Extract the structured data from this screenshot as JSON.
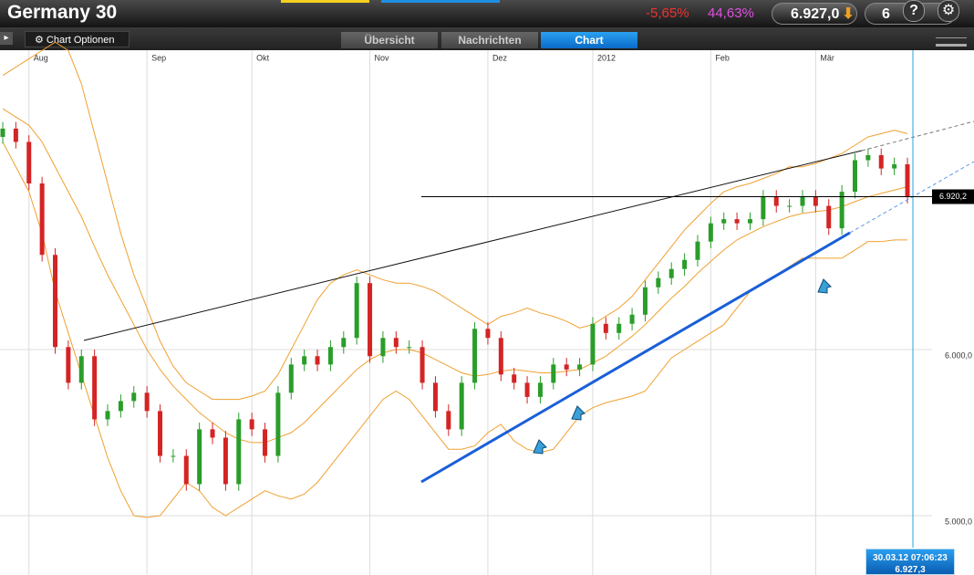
{
  "header": {
    "title": "Germany 30",
    "change_pct": "-5,65%",
    "other_pct": "44,63%",
    "price": "6.927,0",
    "price2": "6"
  },
  "toolbar": {
    "options": "Chart Optionen",
    "tabs": [
      "Übersicht",
      "Nachrichten",
      "Chart"
    ]
  },
  "footer": {
    "time": "30.03.12 07:06:23",
    "price": "6.927,3"
  },
  "chart_data": {
    "type": "candlestick",
    "categories": [
      null,
      null,
      "Aug",
      null,
      null,
      null,
      null,
      null,
      null,
      null,
      null,
      "Sep",
      null,
      null,
      null,
      null,
      null,
      null,
      null,
      "Okt",
      null,
      null,
      null,
      null,
      null,
      null,
      null,
      null,
      "Nov",
      null,
      null,
      null,
      null,
      null,
      null,
      null,
      null,
      "Dez",
      null,
      null,
      null,
      null,
      null,
      null,
      null,
      "2012",
      null,
      null,
      null,
      null,
      null,
      null,
      null,
      null,
      "Feb",
      null,
      null,
      null,
      null,
      null,
      null,
      null,
      "Mär",
      null,
      null,
      null,
      null,
      null,
      null,
      null
    ],
    "open": [
      7280,
      7330,
      7250,
      7000,
      6570,
      6015,
      5800,
      5960,
      5580,
      5630,
      5690,
      5740,
      5630,
      5360,
      5360,
      5190,
      5520,
      5470,
      5190,
      5580,
      5520,
      5360,
      5740,
      5910,
      5960,
      5910,
      6015,
      6070,
      6400,
      5960,
      6070,
      6015,
      6015,
      5800,
      5630,
      5520,
      5800,
      6125,
      6070,
      5850,
      5800,
      5715,
      5800,
      5910,
      5880,
      5910,
      6155,
      6100,
      6155,
      6210,
      6375,
      6430,
      6485,
      6540,
      6650,
      6760,
      6785,
      6760,
      6785,
      6920,
      6865,
      6865,
      6920,
      6865,
      6730,
      6950,
      7140,
      7170,
      7090,
      7115
    ],
    "high": [
      7370,
      7370,
      7290,
      7040,
      6610,
      6055,
      6000,
      6000,
      5670,
      5730,
      5780,
      5780,
      5670,
      5400,
      5400,
      5560,
      5560,
      5510,
      5620,
      5620,
      5560,
      5780,
      5950,
      6000,
      6000,
      6055,
      6110,
      6440,
      6440,
      6110,
      6110,
      6055,
      6055,
      5840,
      5670,
      5840,
      6165,
      6165,
      6110,
      5890,
      5840,
      5840,
      5950,
      5950,
      5950,
      6195,
      6195,
      6195,
      6250,
      6415,
      6470,
      6525,
      6580,
      6690,
      6800,
      6825,
      6825,
      6825,
      6960,
      6960,
      6905,
      6960,
      6960,
      6905,
      6990,
      7180,
      7210,
      7210,
      7155,
      7155
    ],
    "low": [
      7240,
      7210,
      6960,
      6530,
      5975,
      5760,
      5760,
      5540,
      5540,
      5590,
      5650,
      5590,
      5320,
      5320,
      5150,
      5150,
      5430,
      5150,
      5150,
      5480,
      5320,
      5320,
      5700,
      5870,
      5870,
      5870,
      5975,
      6030,
      5920,
      5920,
      5975,
      5975,
      5760,
      5590,
      5480,
      5480,
      5760,
      6030,
      5810,
      5760,
      5675,
      5675,
      5760,
      5840,
      5840,
      5870,
      6060,
      6060,
      6115,
      6170,
      6335,
      6390,
      6445,
      6500,
      6610,
      6720,
      6720,
      6720,
      6745,
      6825,
      6825,
      6825,
      6825,
      6690,
      6690,
      6910,
      7100,
      7050,
      7050,
      6880
    ],
    "close": [
      7330,
      7250,
      7000,
      6570,
      6015,
      5800,
      5960,
      5580,
      5630,
      5690,
      5740,
      5630,
      5360,
      5360,
      5190,
      5520,
      5470,
      5190,
      5580,
      5520,
      5360,
      5740,
      5910,
      5960,
      5910,
      6015,
      6070,
      6400,
      5960,
      6070,
      6015,
      6015,
      5800,
      5630,
      5520,
      5800,
      6125,
      6070,
      5850,
      5800,
      5715,
      5800,
      5910,
      5880,
      5910,
      6155,
      6100,
      6155,
      6210,
      6375,
      6430,
      6485,
      6540,
      6650,
      6760,
      6785,
      6760,
      6785,
      6920,
      6865,
      6865,
      6920,
      6865,
      6730,
      6950,
      7140,
      7170,
      7090,
      7115,
      6920.2
    ],
    "up_color": "#2a9d2a",
    "down_color": "#d42424",
    "bands": [
      {
        "color": "#f0a030",
        "values": [
          7650,
          7700,
          7750,
          7800,
          7850,
          7800,
          7600,
          7300,
          7000,
          6700,
          6450,
          6250,
          6050,
          5900,
          5800,
          5750,
          5700,
          5700,
          5700,
          5720,
          5750,
          5850,
          6000,
          6150,
          6300,
          6400,
          6450,
          6480,
          6450,
          6420,
          6400,
          6400,
          6380,
          6350,
          6300,
          6250,
          6200,
          6150,
          6200,
          6220,
          6250,
          6220,
          6200,
          6170,
          6130,
          6150,
          6200,
          6250,
          6320,
          6420,
          6520,
          6620,
          6720,
          6800,
          6880,
          6950,
          6980,
          7000,
          7030,
          7060,
          7100,
          7100,
          7120,
          7150,
          7180,
          7230,
          7280,
          7300,
          7320,
          7300
        ]
      },
      {
        "color": "#f0a030",
        "values": [
          7450,
          7400,
          7350,
          7250,
          7100,
          6950,
          6800,
          6620,
          6450,
          6300,
          6150,
          6000,
          5880,
          5780,
          5700,
          5620,
          5560,
          5500,
          5460,
          5440,
          5440,
          5470,
          5500,
          5560,
          5640,
          5720,
          5800,
          5880,
          5940,
          5980,
          6000,
          6000,
          5980,
          5940,
          5900,
          5860,
          5840,
          5850,
          5870,
          5880,
          5870,
          5860,
          5860,
          5870,
          5880,
          5920,
          5960,
          6020,
          6080,
          6150,
          6230,
          6310,
          6380,
          6460,
          6530,
          6600,
          6660,
          6700,
          6740,
          6770,
          6800,
          6820,
          6830,
          6840,
          6860,
          6890,
          6920,
          6940,
          6960,
          6980
        ]
      },
      {
        "color": "#f0a030",
        "values": [
          7250,
          7100,
          6950,
          6700,
          6350,
          6100,
          5850,
          5600,
          5350,
          5150,
          5000,
          4990,
          5000,
          5100,
          5200,
          5150,
          5050,
          5000,
          5050,
          5100,
          5150,
          5120,
          5100,
          5130,
          5200,
          5300,
          5400,
          5500,
          5600,
          5700,
          5750,
          5700,
          5600,
          5500,
          5400,
          5400,
          5420,
          5500,
          5550,
          5450,
          5400,
          5380,
          5400,
          5500,
          5600,
          5650,
          5680,
          5700,
          5720,
          5750,
          5850,
          5950,
          6000,
          6050,
          6100,
          6150,
          6250,
          6350,
          6400,
          6450,
          6500,
          6550,
          6550,
          6550,
          6550,
          6600,
          6650,
          6650,
          6660,
          6660
        ]
      }
    ],
    "ylim": [
      4643,
      7802
    ],
    "yticks": [
      {
        "value": 6000,
        "label": "6.000,0"
      },
      {
        "value": 5000,
        "label": "5.000,0"
      }
    ],
    "grid": true,
    "last_price": {
      "value": 6920.2,
      "label": "6.920,2"
    }
  }
}
